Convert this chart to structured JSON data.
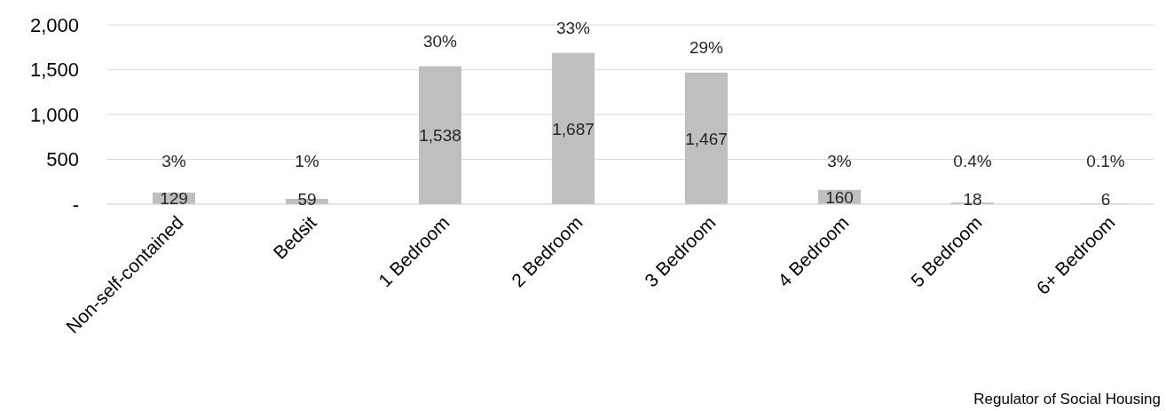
{
  "chart_data": {
    "type": "bar",
    "categories": [
      "Non-self-contained",
      "Bedsit",
      "1 Bedroom",
      "2 Bedroom",
      "3 Bedroom",
      "4 Bedroom",
      "5 Bedroom",
      "6+ Bedroom"
    ],
    "values": [
      129,
      59,
      1538,
      1687,
      1467,
      160,
      18,
      6
    ],
    "value_labels": [
      "129",
      "59",
      "1,538",
      "1,687",
      "1,467",
      "160",
      "18",
      "6"
    ],
    "color": "#bfbfbf",
    "ylim": [
      0,
      2000
    ],
    "yticks": [
      {
        "value": 0,
        "label": "-"
      },
      {
        "value": 500,
        "label": "500"
      },
      {
        "value": 1000,
        "label": "1,000"
      },
      {
        "value": 1500,
        "label": "1,500"
      },
      {
        "value": 2000,
        "label": "2,000"
      }
    ],
    "grid": "y",
    "annotations": [
      {
        "text": "3%",
        "x": "Non-self-contained",
        "y": 129
      },
      {
        "text": "1%",
        "x": "Bedsit",
        "y": 59
      },
      {
        "text": "30%",
        "x": "1 Bedroom",
        "y": 1538
      },
      {
        "text": "33%",
        "x": "2 Bedroom",
        "y": 1687
      },
      {
        "text": "29%",
        "x": "3 Bedroom",
        "y": 1467
      },
      {
        "text": "3%",
        "x": "4 Bedroom",
        "y": 160
      },
      {
        "text": "0.4%",
        "x": "5 Bedroom",
        "y": 18
      },
      {
        "text": "0.1%",
        "x": "6+ Bedroom",
        "y": 6
      },
      "Regulator of Social Housing"
    ]
  }
}
